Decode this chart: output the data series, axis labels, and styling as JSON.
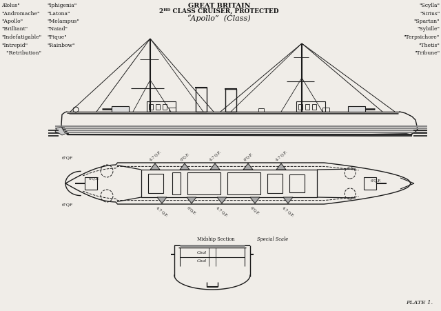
{
  "bg_color": "#f0ede8",
  "line_color": "#1a1a1a",
  "text_color": "#111111",
  "title1": "GREAT BRITAIN",
  "title2": "2ᴴᴰ CLASS CRUISER, PROTECTED",
  "title3": "“Apollo”  (Class)",
  "left_col1": [
    "Æolus\"",
    "\"Andromache\"",
    "\"Apollo\"",
    "\"Brilliant\"",
    "\"Indefatigable\"",
    "\"Intrepid\"",
    "   \"Retribution\""
  ],
  "left_col2": [
    "\"Iphigenia\"",
    "\"Latona\"",
    "\"Melampus\"",
    "\"Naiad\"",
    "\"Pique\"",
    "\"Rainbow\"",
    ""
  ],
  "right_names": [
    "\"Scylla\"",
    "\"Sirius\"",
    "\"Spartan\"",
    "\"Sybille\"",
    "\"Terpsichore\"",
    "\"Thetis\"",
    "\"Tribune\""
  ],
  "plate_label": "PLATE 1."
}
